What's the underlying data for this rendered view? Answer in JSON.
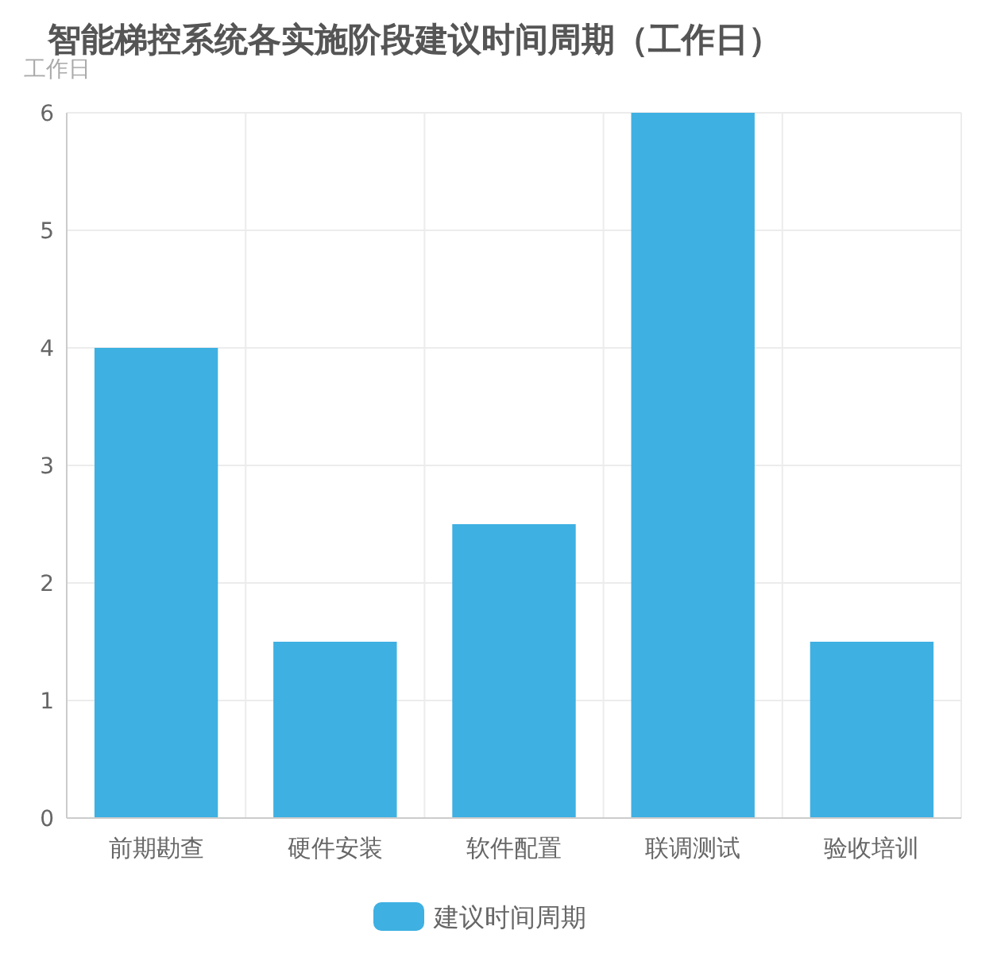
{
  "chart_data": {
    "type": "bar",
    "title": "智能梯控系统各实施阶段建议时间周期（工作日）",
    "ylabel": "工作日",
    "categories": [
      "前期勘查",
      "硬件安装",
      "软件配置",
      "联调测试",
      "验收培训"
    ],
    "series": [
      {
        "name": "建议时间周期",
        "color": "#3eb0e2",
        "values": [
          4,
          1.5,
          2.5,
          6,
          1.5
        ]
      }
    ],
    "ylim": [
      0,
      6
    ],
    "yticks": [
      0,
      1,
      2,
      3,
      4,
      5,
      6
    ],
    "grid": true,
    "legend": "bottom"
  }
}
